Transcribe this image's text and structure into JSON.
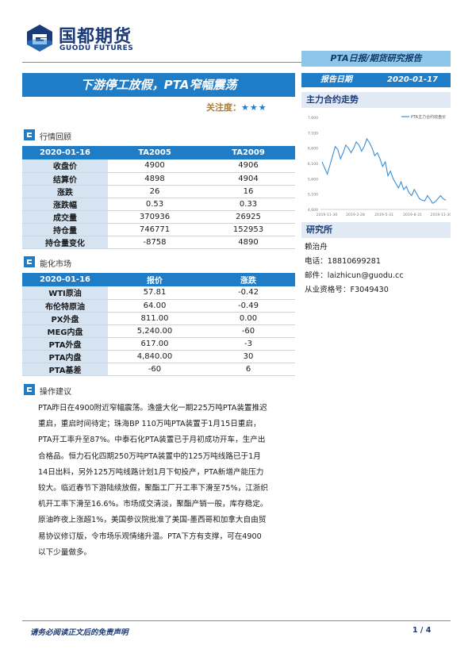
{
  "brand": {
    "name_cn": "国都期货",
    "name_en": "GUODU FUTURES",
    "accent": "#1f7dc8",
    "navy": "#1b3a78"
  },
  "report_type": "PTA日报/期货研究报告",
  "title": "下游停工放假，PTA窄幅震荡",
  "focus": {
    "label": "关注度：",
    "stars": "★★★"
  },
  "report_date": {
    "label": "报告日期",
    "value": "2020-01-17"
  },
  "sidebar": {
    "chart_heading": "主力合约走势",
    "institute_heading": "研究所",
    "analyst": "赖治舟",
    "phone": "电话：18810699281",
    "email": "邮件：laizhicun@guodu.cc",
    "license": "从业资格号：F3049430"
  },
  "sections": {
    "review": "行情回顾",
    "energy": "能化市场",
    "advice": "操作建议"
  },
  "review_table": {
    "headers": [
      "2020-01-16",
      "TA2005",
      "TA2009"
    ],
    "rows": [
      [
        "收盘价",
        "4900",
        "4906"
      ],
      [
        "结算价",
        "4898",
        "4904"
      ],
      [
        "涨跌",
        "26",
        "16"
      ],
      [
        "涨跌幅",
        "0.53",
        "0.33"
      ],
      [
        "成交量",
        "370936",
        "26925"
      ],
      [
        "持仓量",
        "746771",
        "152953"
      ],
      [
        "持仓量变化",
        "-8758",
        "4890"
      ]
    ]
  },
  "energy_table": {
    "headers": [
      "2020-01-16",
      "报价",
      "涨跌"
    ],
    "rows": [
      [
        "WTI原油",
        "57.81",
        "-0.42"
      ],
      [
        "布伦特原油",
        "64.00",
        "-0.49"
      ],
      [
        "PX外盘",
        "811.00",
        "0.00"
      ],
      [
        "MEG内盘",
        "5,240.00",
        "-60"
      ],
      [
        "PTA外盘",
        "617.00",
        "-3"
      ],
      [
        "PTA内盘",
        "4,840.00",
        "30"
      ],
      [
        "PTA基差",
        "-60",
        "6"
      ]
    ]
  },
  "advice_lines": [
    "PTA昨日在4900附近窄幅震荡。逸盛大化一期225万吨PTA装置推迟",
    "重启，重启时间待定；珠海BP 110万吨PTA装置于1月15日重启，",
    "PTA开工率升至87%。中泰石化PTA装置已于月初成功开车，生产出",
    "合格品。恒力石化四期250万吨PTA装置中的125万吨线路已于1月",
    "14日出料，另外125万吨线路计划1月下旬投产，PTA新增产能压力",
    "较大。临近春节下游陆续放假，聚酯工厂开工率下滑至75%，江浙织",
    "机开工率下滑至16.6%。市场成交清淡，聚酯产销一般，库存稳定。",
    "原油昨夜上涨超1%，美国参议院批准了美国-墨西哥和加拿大自由贸",
    "易协议修订版，令市场乐观情绪升温。PTA下方有支撑，可在4900",
    "以下少量做多。"
  ],
  "footer": {
    "disclaimer": "请务必阅读正文后的免责声明",
    "page": "1 / 4"
  },
  "chart_data": {
    "type": "line",
    "title": "",
    "legend": [
      "PTA主力合约收盘价"
    ],
    "legend_position": "top-right",
    "xlabel": "",
    "ylabel": "",
    "x_ticks": [
      "2019-11-30",
      "2019-2-28",
      "2019-5-31",
      "2019-8-31",
      "2019-11-30"
    ],
    "y_ticks": [
      "4,600",
      "5,100",
      "5,600",
      "6,100",
      "6,600",
      "7,100",
      "7,600"
    ],
    "ylim": [
      4600,
      7600
    ],
    "grid": false,
    "series": [
      {
        "name": "PTA主力合约收盘价",
        "values": [
          6150,
          5950,
          5750,
          6050,
          6350,
          6650,
          6550,
          6250,
          6450,
          6700,
          6600,
          6450,
          6600,
          6800,
          6700,
          6500,
          6650,
          6900,
          6780,
          6600,
          6350,
          6450,
          6250,
          6000,
          6150,
          5700,
          5850,
          5600,
          5450,
          5300,
          5500,
          5250,
          5350,
          5150,
          5050,
          5250,
          5100,
          4950,
          4900,
          4880,
          5050,
          4930,
          4800,
          4850,
          4950,
          5050,
          4950,
          4900
        ]
      }
    ]
  }
}
